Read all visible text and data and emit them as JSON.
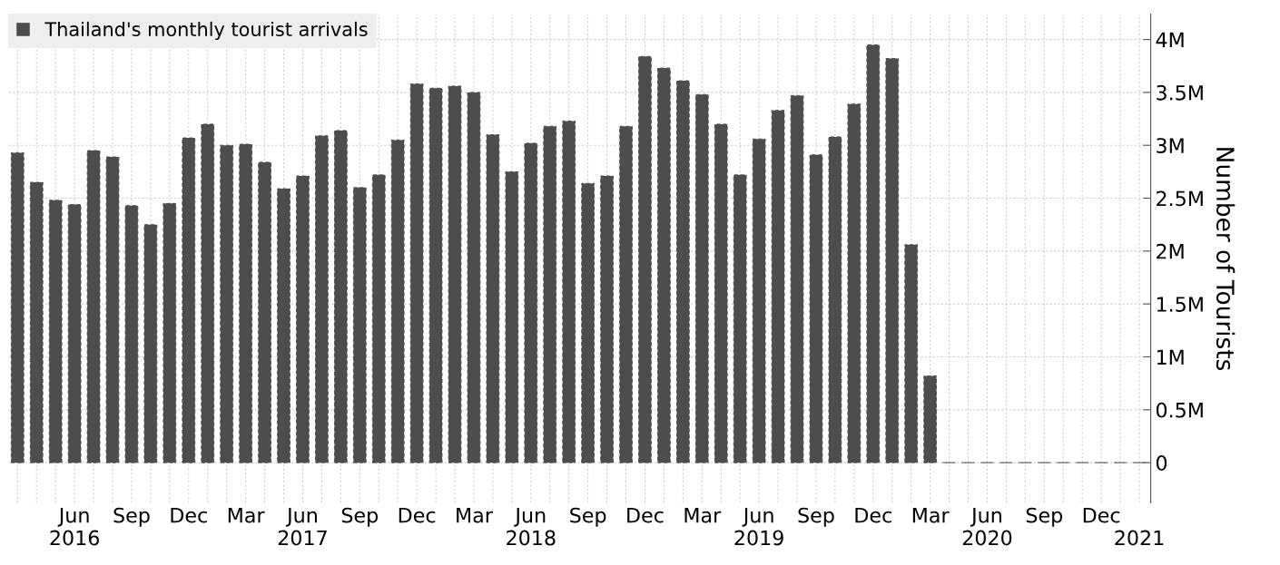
{
  "chart_data": {
    "type": "bar",
    "categories": [
      null,
      null,
      null,
      "Jun\n2016",
      null,
      null,
      "Sep",
      null,
      null,
      "Dec",
      null,
      null,
      "Mar",
      null,
      null,
      "Jun\n2017",
      null,
      null,
      "Sep",
      null,
      null,
      "Dec",
      null,
      null,
      "Mar",
      null,
      null,
      "Jun\n2018",
      null,
      null,
      "Sep",
      null,
      null,
      "Dec",
      null,
      null,
      "Mar",
      null,
      null,
      "Jun\n2019",
      null,
      null,
      "Sep",
      null,
      null,
      "Dec",
      null,
      null,
      "Mar",
      null,
      null,
      "Jun\n2020",
      null,
      null,
      "Sep",
      null,
      null,
      "Dec",
      null,
      "\n2021"
    ],
    "series": [
      {
        "name": "Thailand's monthly tourist arrivals",
        "color": "#4d4d4d",
        "values": [
          2930000,
          2650000,
          2480000,
          2440000,
          2950000,
          2890000,
          2430000,
          2250000,
          2450000,
          3070000,
          3200000,
          3000000,
          3010000,
          2840000,
          2590000,
          2710000,
          3090000,
          3140000,
          2600000,
          2720000,
          3050000,
          3580000,
          3540000,
          3560000,
          3500000,
          3100000,
          2750000,
          3020000,
          3180000,
          3230000,
          2640000,
          2710000,
          3180000,
          3840000,
          3730000,
          3610000,
          3480000,
          3200000,
          2720000,
          3060000,
          3330000,
          3470000,
          2910000,
          3080000,
          3390000,
          3950000,
          3820000,
          2060000,
          820000,
          0,
          0,
          0,
          0,
          0,
          0,
          0,
          0,
          0,
          0,
          0
        ]
      }
    ],
    "ylabel": "Number of Tourists",
    "ylim": [
      -380000,
      4240000
    ],
    "yticks": [
      {
        "value": 0,
        "label": "0"
      },
      {
        "value": 500000,
        "label": "0.5M"
      },
      {
        "value": 1000000,
        "label": "1M"
      },
      {
        "value": 1500000,
        "label": "1.5M"
      },
      {
        "value": 2000000,
        "label": "2M"
      },
      {
        "value": 2500000,
        "label": "2.5M"
      },
      {
        "value": 3000000,
        "label": "3M"
      },
      {
        "value": 3500000,
        "label": "3.5M"
      },
      {
        "value": 4000000,
        "label": "4M"
      }
    ],
    "grid": true,
    "legend": "top left"
  }
}
